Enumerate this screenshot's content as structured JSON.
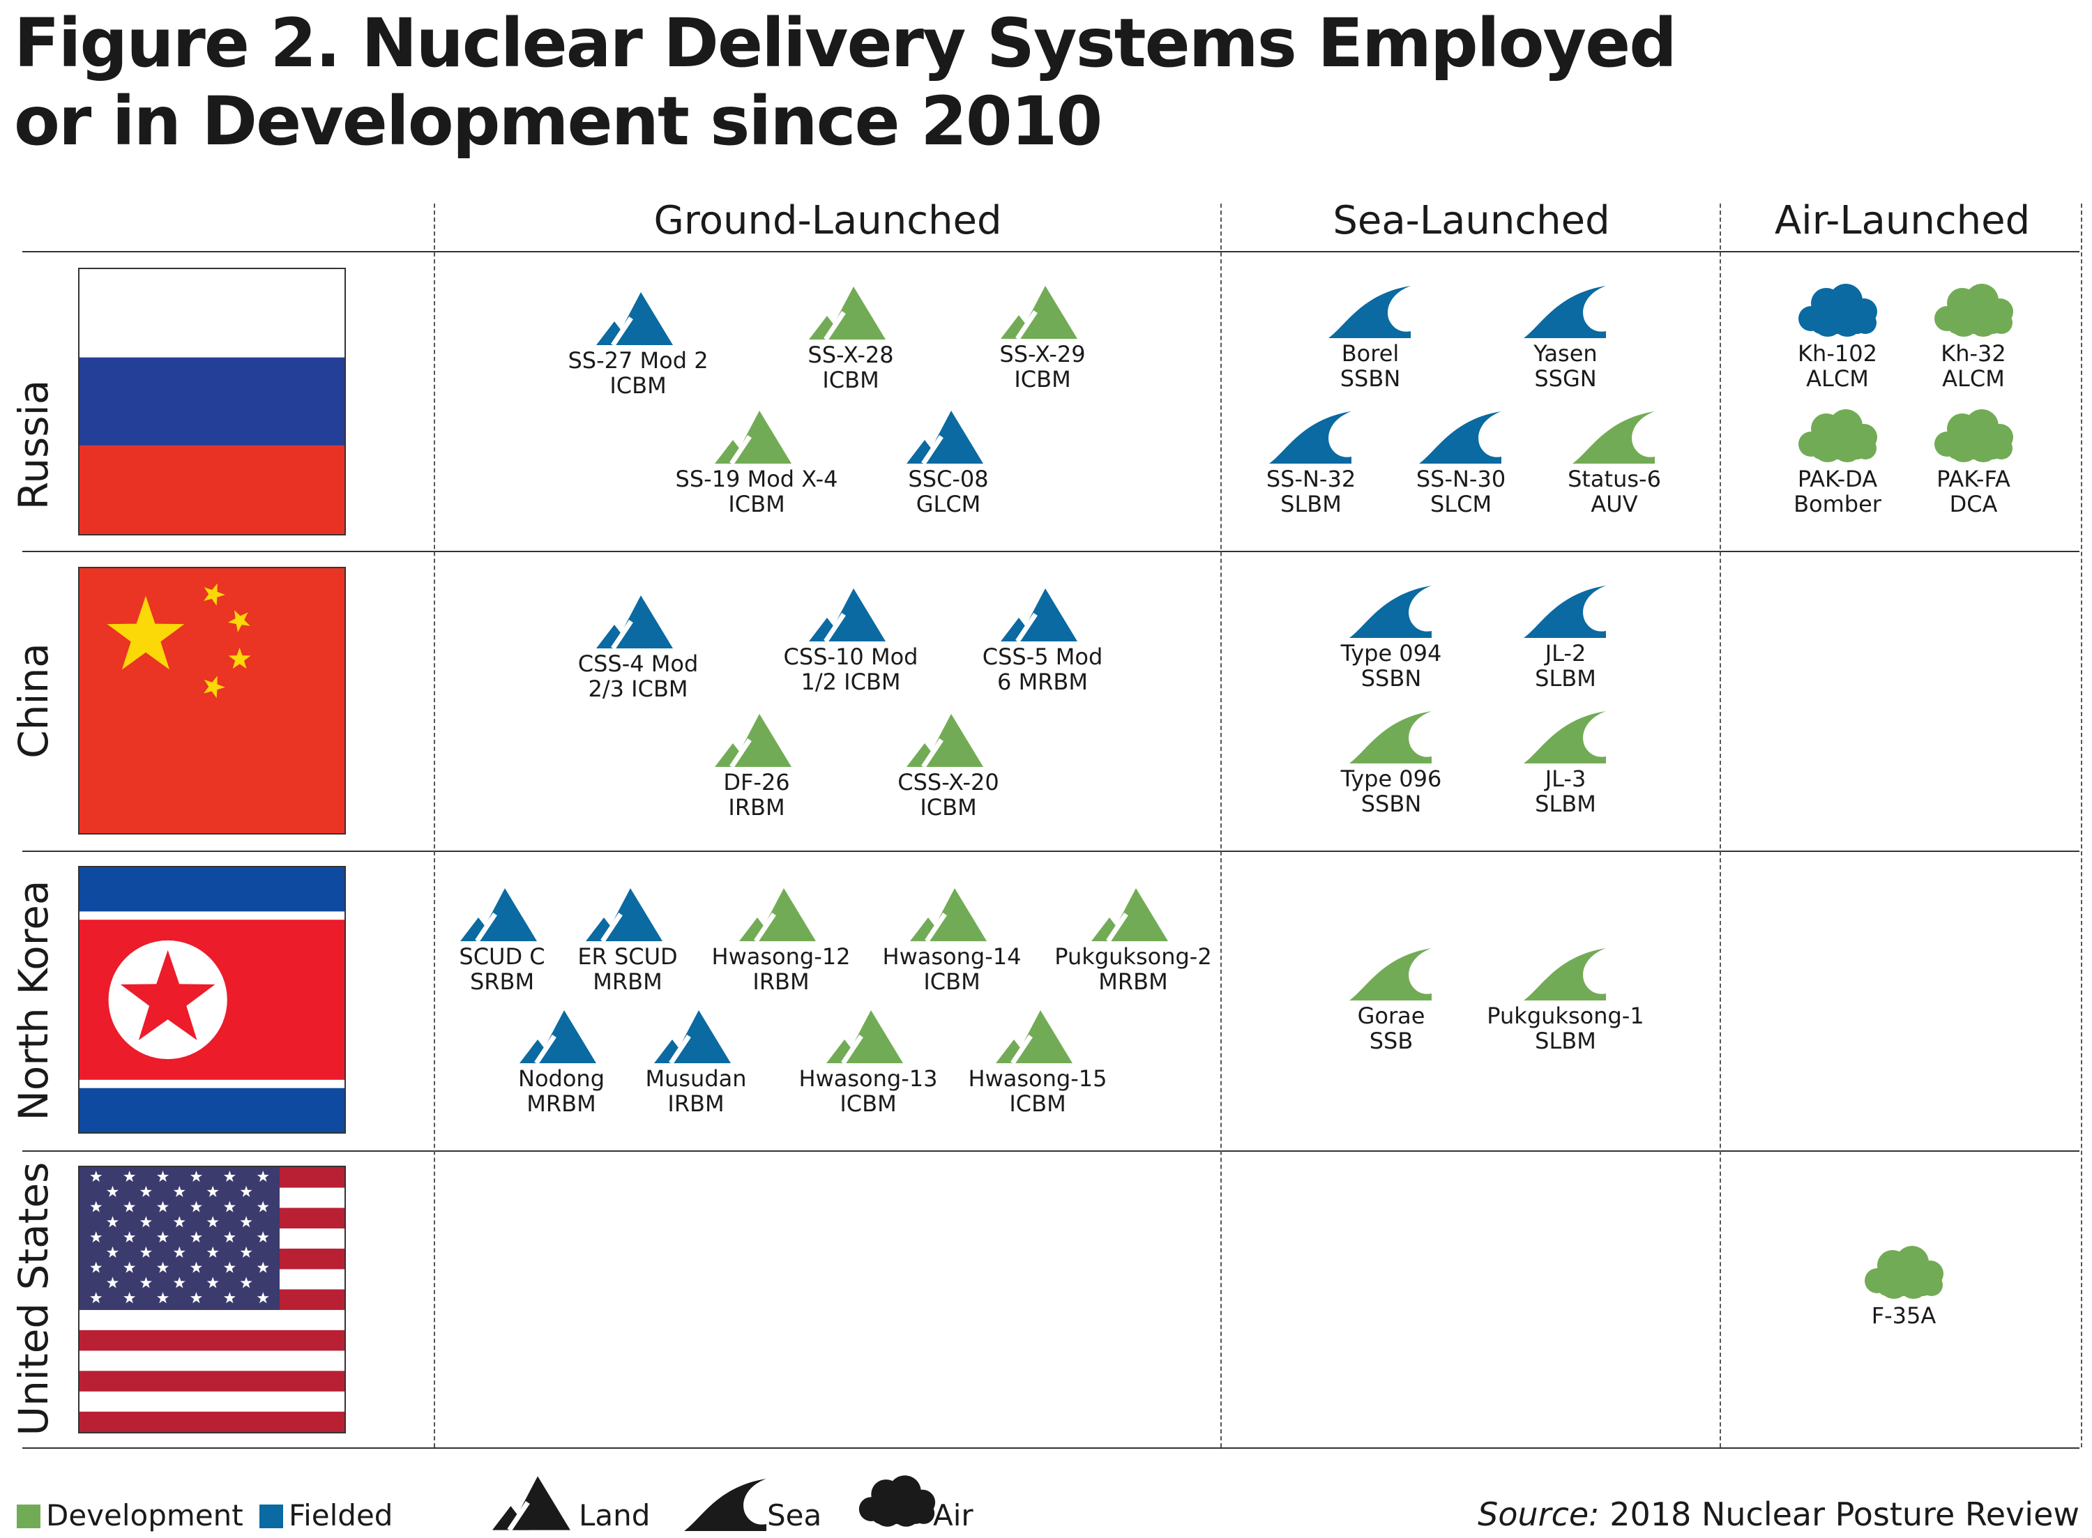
{
  "title": {
    "line1": "Figure 2. Nuclear Delivery Systems Employed",
    "line2": "or in Development since 2010"
  },
  "columns": [
    "Ground-Launched",
    "Sea-Launched",
    "Air-Launched"
  ],
  "rows": [
    "Russia",
    "China",
    "North Korea",
    "United States"
  ],
  "colors": {
    "development": "#72ab55",
    "fielded": "#0a6aa1",
    "legend_icon": "#1a1a1a"
  },
  "systems": {
    "russia": {
      "ground": [
        {
          "name": "SS-27 Mod 2",
          "type": "ICBM",
          "status": "fielded"
        },
        {
          "name": "SS-X-28",
          "type": "ICBM",
          "status": "development"
        },
        {
          "name": "SS-X-29",
          "type": "ICBM",
          "status": "development"
        },
        {
          "name": "SS-19 Mod X-4",
          "type": "ICBM",
          "status": "development"
        },
        {
          "name": "SSC-08",
          "type": "GLCM",
          "status": "fielded"
        }
      ],
      "sea": [
        {
          "name": "Borel",
          "type": "SSBN",
          "status": "fielded"
        },
        {
          "name": "Yasen",
          "type": "SSGN",
          "status": "fielded"
        },
        {
          "name": "SS-N-32",
          "type": "SLBM",
          "status": "fielded"
        },
        {
          "name": "SS-N-30",
          "type": "SLCM",
          "status": "fielded"
        },
        {
          "name": "Status-6",
          "type": "AUV",
          "status": "development"
        }
      ],
      "air": [
        {
          "name": "Kh-102",
          "type": "ALCM",
          "status": "fielded"
        },
        {
          "name": "Kh-32",
          "type": "ALCM",
          "status": "development"
        },
        {
          "name": "PAK-DA",
          "type": "Bomber",
          "status": "development"
        },
        {
          "name": "PAK-FA",
          "type": "DCA",
          "status": "development"
        }
      ]
    },
    "china": {
      "ground": [
        {
          "name": "CSS-4 Mod",
          "type": "2/3 ICBM",
          "status": "fielded"
        },
        {
          "name": "CSS-10 Mod",
          "type": "1/2 ICBM",
          "status": "fielded"
        },
        {
          "name": "CSS-5 Mod",
          "type": "6 MRBM",
          "status": "fielded"
        },
        {
          "name": "DF-26",
          "type": "IRBM",
          "status": "development"
        },
        {
          "name": "CSS-X-20",
          "type": "ICBM",
          "status": "development"
        }
      ],
      "sea": [
        {
          "name": "Type 094",
          "type": "SSBN",
          "status": "fielded"
        },
        {
          "name": "JL-2",
          "type": "SLBM",
          "status": "fielded"
        },
        {
          "name": "Type 096",
          "type": "SSBN",
          "status": "development"
        },
        {
          "name": "JL-3",
          "type": "SLBM",
          "status": "development"
        }
      ]
    },
    "north_korea": {
      "ground": [
        {
          "name": "SCUD C",
          "type": "SRBM",
          "status": "fielded"
        },
        {
          "name": "ER SCUD",
          "type": "MRBM",
          "status": "fielded"
        },
        {
          "name": "Hwasong-12",
          "type": "IRBM",
          "status": "development"
        },
        {
          "name": "Hwasong-14",
          "type": "ICBM",
          "status": "development"
        },
        {
          "name": "Pukguksong-2",
          "type": "MRBM",
          "status": "development"
        },
        {
          "name": "Nodong",
          "type": "MRBM",
          "status": "fielded"
        },
        {
          "name": "Musudan",
          "type": "IRBM",
          "status": "fielded"
        },
        {
          "name": "Hwasong-13",
          "type": "ICBM",
          "status": "development"
        },
        {
          "name": "Hwasong-15",
          "type": "ICBM",
          "status": "development"
        }
      ],
      "sea": [
        {
          "name": "Gorae",
          "type": "SSB",
          "status": "development"
        },
        {
          "name": "Pukguksong-1",
          "type": "SLBM",
          "status": "development"
        }
      ]
    },
    "united_states": {
      "air": [
        {
          "name": "F-35A",
          "status": "development"
        }
      ]
    }
  },
  "legend": {
    "development": "Development",
    "fielded": "Fielded",
    "land": "Land",
    "sea": "Sea",
    "air": "Air"
  },
  "source": {
    "label": "Source:",
    "text": " 2018 Nuclear Posture Review"
  },
  "icons": {
    "ground": "mountain-icon",
    "sea": "wave-icon",
    "air": "cloud-icon"
  }
}
